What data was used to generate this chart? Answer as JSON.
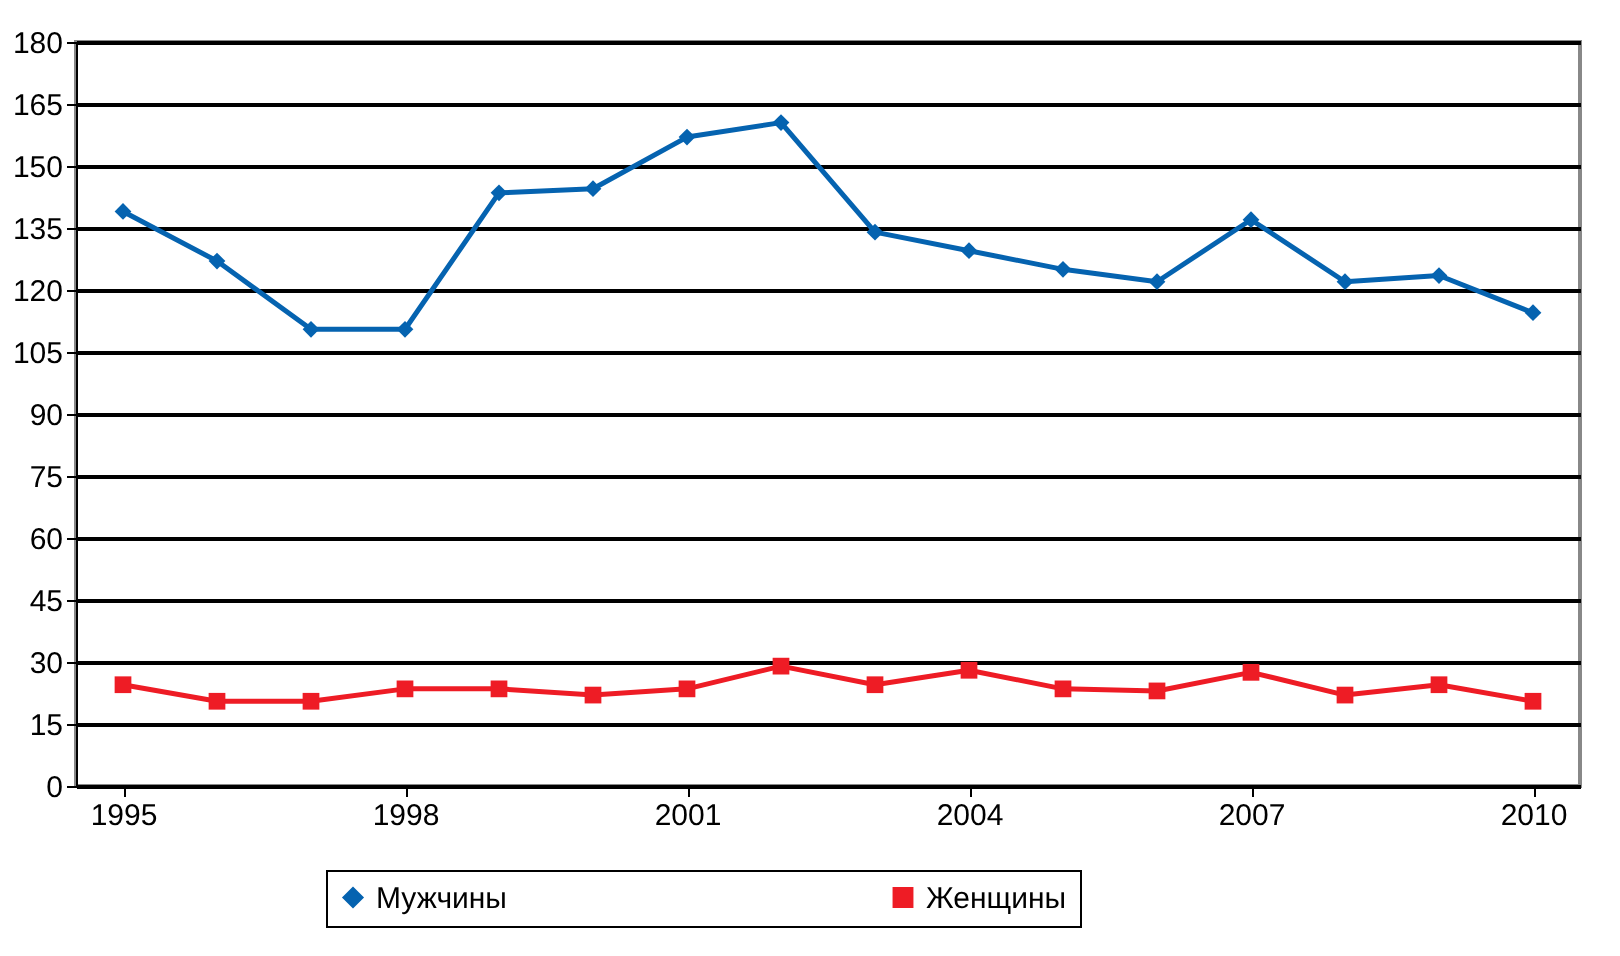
{
  "chart_data": {
    "type": "line",
    "categories": [
      "1995",
      null,
      null,
      "1998",
      null,
      null,
      "2001",
      null,
      null,
      "2004",
      null,
      null,
      "2007",
      null,
      null,
      "2010"
    ],
    "series": [
      {
        "name": "Мужчины",
        "color": "#0563b0",
        "marker": "diamond",
        "values": [
          139,
          127,
          110.5,
          110.5,
          143.5,
          144.5,
          157,
          160.5,
          134,
          129.5,
          125,
          122,
          137,
          122,
          123.5,
          114.5
        ]
      },
      {
        "name": "Женщины",
        "color": "#ee1c25",
        "marker": "square",
        "values": [
          24.5,
          20.5,
          20.5,
          23.5,
          23.5,
          22,
          23.5,
          29,
          24.5,
          28,
          23.5,
          23,
          27.5,
          22,
          24.5,
          20.5
        ]
      }
    ],
    "ylim": [
      0,
      180
    ],
    "yticks": [
      0,
      15,
      30,
      45,
      60,
      75,
      90,
      105,
      120,
      135,
      150,
      165,
      180
    ],
    "grid": "y",
    "legend": "bottom",
    "line_style": "solid"
  }
}
